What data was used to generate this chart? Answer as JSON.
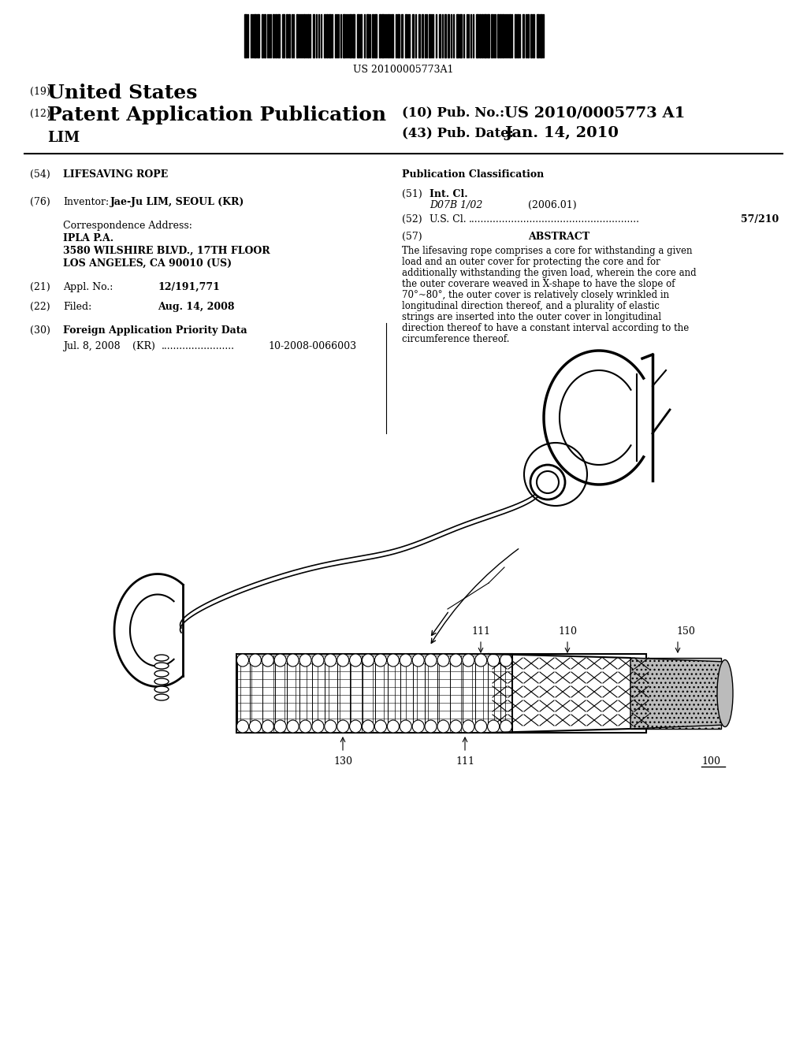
{
  "background_color": "#ffffff",
  "barcode_text": "US 20100005773A1",
  "title_19": "(19)",
  "title_19_text": "United States",
  "title_12": "(12)",
  "title_12_text": "Patent Application Publication",
  "inventor_name": "LIM",
  "pub_no_label": "(10) Pub. No.:",
  "pub_no_value": "US 2010/0005773 A1",
  "pub_date_label": "(43) Pub. Date:",
  "pub_date_value": "Jan. 14, 2010",
  "field_54_label": "(54)",
  "field_54_text": "LIFESAVING ROPE",
  "pub_class_title": "Publication Classification",
  "field_76_label": "(76)",
  "field_76_name": "Inventor:",
  "field_76_value": "Jae-Ju LIM, SEOUL (KR)",
  "corr_label": "Correspondence Address:",
  "corr_line1": "IPLA P.A.",
  "corr_line2": "3580 WILSHIRE BLVD., 17TH FLOOR",
  "corr_line3": "LOS ANGELES, CA 90010 (US)",
  "field_21_label": "(21)",
  "field_21_name": "Appl. No.:",
  "field_21_value": "12/191,771",
  "field_22_label": "(22)",
  "field_22_name": "Filed:",
  "field_22_value": "Aug. 14, 2008",
  "field_30_label": "(30)",
  "field_30_name": "Foreign Application Priority Data",
  "field_30_date": "Jul. 8, 2008",
  "field_30_country": "(KR)",
  "field_30_dots": "........................",
  "field_30_number": "10-2008-0066003",
  "field_51_label": "(51)",
  "field_51_name": "Int. Cl.",
  "field_51_class": "D07B 1/02",
  "field_51_year": "(2006.01)",
  "field_52_label": "(52)",
  "field_52_name": "U.S. Cl.",
  "field_52_dots": "........................................................",
  "field_52_value": "57/210",
  "field_57_label": "(57)",
  "field_57_name": "ABSTRACT",
  "abstract_text": "The lifesaving rope comprises a core for withstanding a given load and an outer cover for protecting the core and for additionally withstanding the given load, wherein the core and the outer coverare weaved in X-shape to have the slope of 70°~80°, the outer cover is relatively closely wrinkled in longitudinal direction thereof, and a plurality of elastic strings are inserted into the outer cover in longitudinal direction thereof to have a constant interval according to the circumference thereof.",
  "label_111_top": "111",
  "label_110": "110",
  "label_150": "150",
  "label_130": "130",
  "label_111_bot": "111",
  "label_100": "100"
}
